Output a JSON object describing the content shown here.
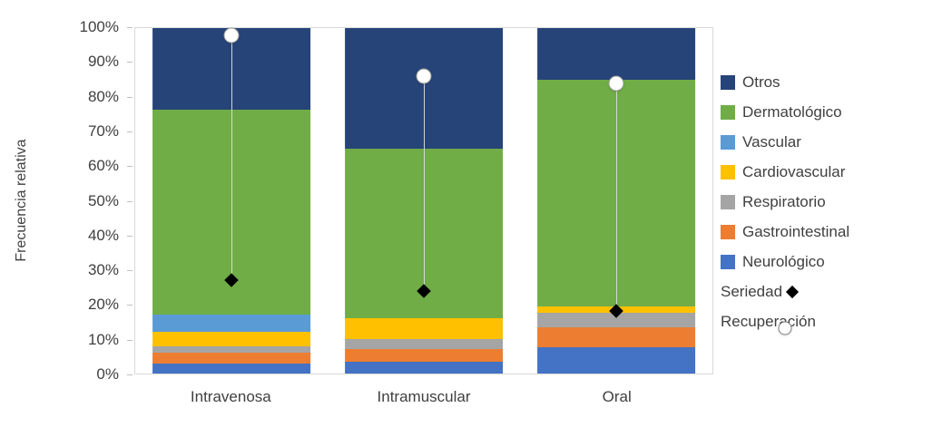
{
  "chart_data": {
    "type": "bar",
    "subtype": "stacked-100-percent-with-markers",
    "title": "",
    "ylabel": "Frecuencia relativa",
    "xlabel": "",
    "ylim": [
      0,
      100
    ],
    "yticks": [
      0,
      10,
      20,
      30,
      40,
      50,
      60,
      70,
      80,
      90,
      100
    ],
    "ytick_suffix": "%",
    "grid": false,
    "legend_position": "right",
    "categories": [
      "Intravenosa",
      "Intramuscular",
      "Oral"
    ],
    "series": [
      {
        "name": "Neurológico",
        "color": "#4472C4",
        "values": [
          3,
          3.5,
          7.5
        ]
      },
      {
        "name": "Gastrointestinal",
        "color": "#ED7D31",
        "values": [
          3,
          3.5,
          6
        ]
      },
      {
        "name": "Respiratorio",
        "color": "#A5A5A5",
        "values": [
          2,
          3,
          4
        ]
      },
      {
        "name": "Cardiovascular",
        "color": "#FFC000",
        "values": [
          4,
          6,
          2
        ]
      },
      {
        "name": "Vascular",
        "color": "#5B9BD5",
        "values": [
          5,
          0,
          0
        ]
      },
      {
        "name": "Dermatológico",
        "color": "#70AD47",
        "values": [
          59.5,
          49,
          65.5
        ]
      },
      {
        "name": "Otros",
        "color": "#264478",
        "values": [
          23.5,
          35,
          15
        ]
      }
    ],
    "markers": [
      {
        "name": "Seriedad",
        "shape": "diamond",
        "color": "#000000",
        "values": [
          27,
          24,
          18
        ]
      },
      {
        "name": "Recuperación",
        "shape": "circle",
        "color": "#FFFFFF",
        "values": [
          98,
          86,
          84
        ]
      }
    ],
    "legend": [
      "Otros",
      "Dermatológico",
      "Vascular",
      "Cardiovascular",
      "Respiratorio",
      "Gastrointestinal",
      "Neurológico",
      "Seriedad",
      "Recuperación"
    ]
  }
}
